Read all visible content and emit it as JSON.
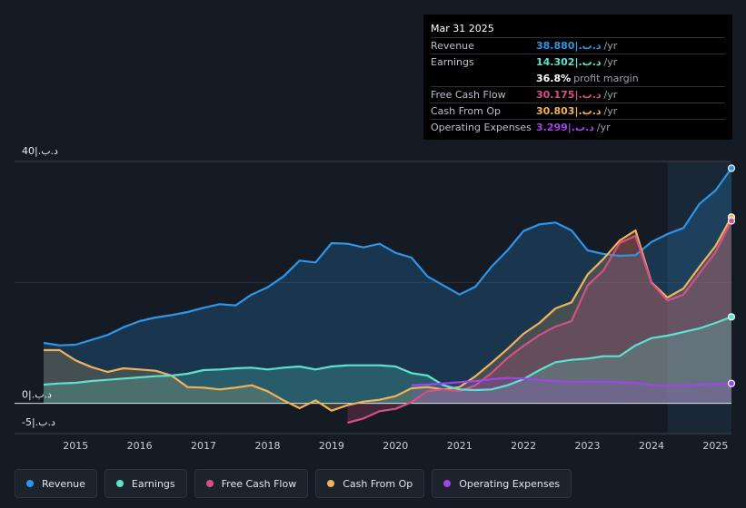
{
  "tooltip": {
    "date": "Mar 31 2025",
    "rows": [
      {
        "label": "Revenue",
        "value": "38.880|.د.ب",
        "unit": "/yr",
        "color": "#2f95e8"
      },
      {
        "label": "Earnings",
        "value": "14.302|.د.ب",
        "unit": "/yr",
        "color": "#5ee2cf"
      },
      {
        "label": "",
        "value": "36.8%",
        "unit": "profit margin",
        "color": "#ffffff"
      },
      {
        "label": "Free Cash Flow",
        "value": "30.175|.د.ب",
        "unit": "/yr",
        "color": "#d64f86"
      },
      {
        "label": "Cash From Op",
        "value": "30.803|.د.ب",
        "unit": "/yr",
        "color": "#f0b35c"
      },
      {
        "label": "Operating Expenses",
        "value": "3.299|.د.ب",
        "unit": "/yr",
        "color": "#a046e8"
      }
    ]
  },
  "legend": [
    {
      "label": "Revenue",
      "color": "#2f95e8"
    },
    {
      "label": "Earnings",
      "color": "#5ee2cf"
    },
    {
      "label": "Free Cash Flow",
      "color": "#d64f86"
    },
    {
      "label": "Cash From Op",
      "color": "#f0b35c"
    },
    {
      "label": "Operating Expenses",
      "color": "#a046e8"
    }
  ],
  "chart_data": {
    "type": "area",
    "ylim": [
      -5,
      40
    ],
    "y_top_label": "40|.د.ب",
    "y_zero_label": "0|.د.ب",
    "y_bottom_label": "-5|.د.ب",
    "x_tick_labels": [
      "2015",
      "2016",
      "2017",
      "2018",
      "2019",
      "2020",
      "2021",
      "2022",
      "2023",
      "2024",
      "2025"
    ],
    "x_ticks": [
      2015,
      2016,
      2017,
      2018,
      2019,
      2020,
      2021,
      2022,
      2023,
      2024,
      2025
    ],
    "xlim": [
      2014.0,
      2025.25
    ],
    "highlight_from": 2024.25,
    "series": [
      {
        "name": "Revenue",
        "color": "#2f95e8",
        "x": [
          2014.5,
          2014.75,
          2015.0,
          2015.25,
          2015.5,
          2015.75,
          2016.0,
          2016.25,
          2016.5,
          2016.75,
          2017.0,
          2017.25,
          2017.5,
          2017.75,
          2018.0,
          2018.25,
          2018.5,
          2018.75,
          2019.0,
          2019.25,
          2019.5,
          2019.75,
          2020.0,
          2020.25,
          2020.5,
          2020.75,
          2021.0,
          2021.25,
          2021.5,
          2021.75,
          2022.0,
          2022.25,
          2022.5,
          2022.75,
          2023.0,
          2023.25,
          2023.5,
          2023.75,
          2024.0,
          2024.25,
          2024.5,
          2024.75,
          2025.0,
          2025.25
        ],
        "values": [
          10.0,
          9.6,
          9.7,
          10.5,
          11.3,
          12.6,
          13.6,
          14.2,
          14.6,
          15.1,
          15.8,
          16.4,
          16.2,
          18.0,
          19.2,
          21.0,
          23.6,
          23.3,
          26.5,
          26.4,
          25.8,
          26.4,
          24.9,
          24.1,
          21.0,
          19.5,
          18.0,
          19.3,
          22.6,
          25.3,
          28.5,
          29.6,
          29.9,
          28.6,
          25.3,
          24.7,
          24.4,
          24.5,
          26.7,
          28.0,
          29.0,
          33.0,
          35.2,
          38.88
        ]
      },
      {
        "name": "Earnings",
        "color": "#5ee2cf",
        "x": [
          2014.5,
          2014.75,
          2015.0,
          2015.25,
          2015.5,
          2015.75,
          2016.0,
          2016.25,
          2016.5,
          2016.75,
          2017.0,
          2017.25,
          2017.5,
          2017.75,
          2018.0,
          2018.25,
          2018.5,
          2018.75,
          2019.0,
          2019.25,
          2019.5,
          2019.75,
          2020.0,
          2020.25,
          2020.5,
          2020.75,
          2021.0,
          2021.25,
          2021.5,
          2021.75,
          2022.0,
          2022.25,
          2022.5,
          2022.75,
          2023.0,
          2023.25,
          2023.5,
          2023.75,
          2024.0,
          2024.25,
          2024.5,
          2024.75,
          2025.0,
          2025.25
        ],
        "values": [
          3.1,
          3.3,
          3.4,
          3.7,
          3.9,
          4.1,
          4.3,
          4.5,
          4.6,
          4.9,
          5.5,
          5.6,
          5.8,
          5.9,
          5.6,
          5.9,
          6.1,
          5.6,
          6.1,
          6.3,
          6.3,
          6.3,
          6.1,
          5.0,
          4.6,
          3.0,
          2.3,
          2.2,
          2.3,
          3.0,
          4.0,
          5.5,
          6.8,
          7.2,
          7.4,
          7.8,
          7.8,
          9.6,
          10.8,
          11.2,
          11.8,
          12.4,
          13.3,
          14.302
        ]
      },
      {
        "name": "Free Cash Flow",
        "color": "#d64f86",
        "x": [
          2019.25,
          2019.5,
          2019.75,
          2020.0,
          2020.25,
          2020.5,
          2020.75,
          2021.0,
          2021.25,
          2021.5,
          2021.75,
          2022.0,
          2022.25,
          2022.5,
          2022.75,
          2023.0,
          2023.25,
          2023.5,
          2023.75,
          2024.0,
          2024.25,
          2024.5,
          2024.75,
          2025.0,
          2025.25
        ],
        "values": [
          -3.2,
          -2.5,
          -1.3,
          -0.9,
          0.2,
          2.0,
          2.3,
          2.0,
          3.0,
          5.0,
          7.5,
          9.5,
          11.3,
          12.7,
          13.6,
          19.5,
          22.0,
          26.5,
          27.7,
          19.9,
          17.0,
          18.0,
          21.5,
          25.0,
          30.175
        ]
      },
      {
        "name": "Cash From Op",
        "color": "#f0b35c",
        "x": [
          2014.5,
          2014.75,
          2015.0,
          2015.25,
          2015.5,
          2015.75,
          2016.0,
          2016.25,
          2016.5,
          2016.75,
          2017.0,
          2017.25,
          2017.5,
          2017.75,
          2018.0,
          2018.25,
          2018.5,
          2018.75,
          2019.0,
          2019.25,
          2019.5,
          2019.75,
          2020.0,
          2020.25,
          2020.5,
          2020.75,
          2021.0,
          2021.25,
          2021.5,
          2021.75,
          2022.0,
          2022.25,
          2022.5,
          2022.75,
          2023.0,
          2023.25,
          2023.5,
          2023.75,
          2024.0,
          2024.25,
          2024.5,
          2024.75,
          2025.0,
          2025.25
        ],
        "values": [
          8.8,
          8.8,
          7.1,
          6.0,
          5.2,
          5.8,
          5.6,
          5.4,
          4.6,
          2.7,
          2.6,
          2.3,
          2.6,
          3.0,
          2.0,
          0.5,
          -0.8,
          0.5,
          -1.2,
          -0.3,
          0.3,
          0.6,
          1.2,
          2.5,
          2.7,
          2.3,
          2.7,
          4.5,
          6.7,
          9.0,
          11.5,
          13.3,
          15.7,
          16.7,
          21.3,
          23.9,
          26.9,
          28.6,
          20.0,
          17.5,
          19.0,
          22.6,
          26.0,
          30.803
        ]
      },
      {
        "name": "Operating Expenses",
        "color": "#a046e8",
        "x": [
          2020.25,
          2020.5,
          2020.75,
          2021.0,
          2021.25,
          2021.5,
          2021.75,
          2022.0,
          2022.25,
          2022.5,
          2022.75,
          2023.0,
          2023.25,
          2023.5,
          2023.75,
          2024.0,
          2024.25,
          2024.5,
          2024.75,
          2025.0,
          2025.25
        ],
        "values": [
          3.0,
          3.1,
          3.3,
          3.5,
          3.7,
          4.0,
          4.2,
          4.1,
          3.9,
          3.7,
          3.5,
          3.6,
          3.6,
          3.5,
          3.4,
          3.0,
          2.9,
          3.0,
          3.1,
          3.2,
          3.299
        ]
      }
    ]
  }
}
